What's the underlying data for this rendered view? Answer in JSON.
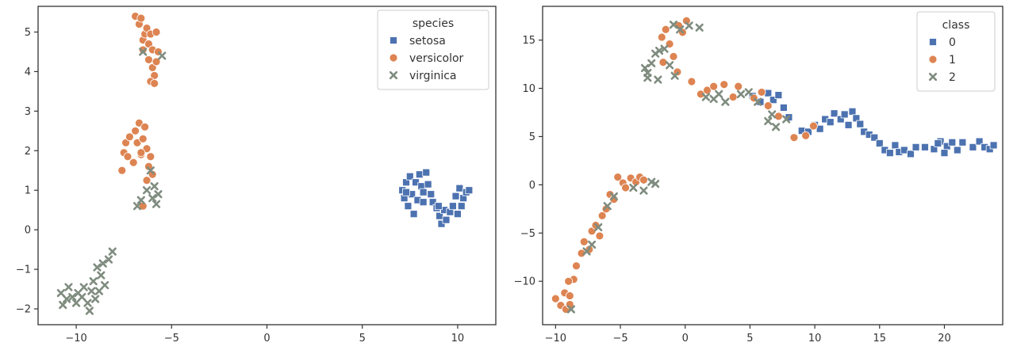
{
  "colors": {
    "setosa": "#4c72b0",
    "versicolor": "#dd8452",
    "virginica": "#7f8c7f",
    "axis": "#333333"
  },
  "chart_data": [
    {
      "type": "scatter",
      "xlim": [
        -12,
        12
      ],
      "ylim": [
        -2.4,
        5.65
      ],
      "xticks": [
        -10,
        -5,
        0,
        5,
        10
      ],
      "yticks": [
        -2,
        -1,
        0,
        1,
        2,
        3,
        4,
        5
      ],
      "grid": false,
      "legend": {
        "title": "species",
        "placement": "top-right"
      },
      "series": [
        {
          "name": "setosa",
          "marker": "square",
          "color": "#4c72b0",
          "points": [
            [
              7.1,
              1.0
            ],
            [
              7.2,
              0.8
            ],
            [
              7.3,
              1.2
            ],
            [
              7.4,
              0.6
            ],
            [
              7.5,
              1.35
            ],
            [
              7.6,
              0.9
            ],
            [
              7.7,
              0.4
            ],
            [
              7.8,
              1.2
            ],
            [
              7.9,
              0.75
            ],
            [
              8.0,
              1.4
            ],
            [
              8.1,
              1.1
            ],
            [
              8.2,
              0.95
            ],
            [
              8.35,
              1.45
            ],
            [
              8.45,
              1.15
            ],
            [
              8.6,
              0.9
            ],
            [
              8.7,
              0.7
            ],
            [
              8.9,
              0.55
            ],
            [
              9.05,
              0.35
            ],
            [
              9.15,
              0.15
            ],
            [
              9.3,
              0.5
            ],
            [
              9.4,
              0.25
            ],
            [
              9.6,
              0.45
            ],
            [
              9.75,
              0.6
            ],
            [
              9.9,
              0.85
            ],
            [
              10.1,
              1.05
            ],
            [
              10.2,
              0.6
            ],
            [
              10.3,
              0.8
            ],
            [
              10.45,
              0.95
            ],
            [
              10.6,
              1.0
            ],
            [
              10.0,
              0.4
            ],
            [
              9.0,
              0.6
            ],
            [
              8.2,
              0.7
            ],
            [
              7.3,
              0.95
            ]
          ]
        },
        {
          "name": "versicolor",
          "marker": "circle",
          "color": "#dd8452",
          "points": [
            [
              -6.9,
              5.4
            ],
            [
              -6.7,
              5.2
            ],
            [
              -6.6,
              5.35
            ],
            [
              -6.5,
              4.8
            ],
            [
              -6.4,
              4.95
            ],
            [
              -6.3,
              5.1
            ],
            [
              -6.2,
              4.7
            ],
            [
              -6.1,
              4.95
            ],
            [
              -6.0,
              4.55
            ],
            [
              -6.2,
              4.3
            ],
            [
              -6.0,
              4.1
            ],
            [
              -5.9,
              3.9
            ],
            [
              -5.8,
              4.25
            ],
            [
              -6.1,
              3.75
            ],
            [
              -5.7,
              4.5
            ],
            [
              -5.8,
              5.0
            ],
            [
              -5.9,
              3.7
            ],
            [
              -6.5,
              4.55
            ],
            [
              -7.6,
              1.5
            ],
            [
              -7.5,
              1.95
            ],
            [
              -7.4,
              2.2
            ],
            [
              -7.3,
              1.85
            ],
            [
              -7.2,
              2.35
            ],
            [
              -7.0,
              1.7
            ],
            [
              -6.9,
              2.5
            ],
            [
              -6.8,
              2.2
            ],
            [
              -6.7,
              2.7
            ],
            [
              -6.6,
              1.9
            ],
            [
              -6.5,
              2.3
            ],
            [
              -6.4,
              2.6
            ],
            [
              -6.3,
              2.05
            ],
            [
              -6.2,
              1.6
            ],
            [
              -6.1,
              1.85
            ],
            [
              -6.3,
              1.25
            ],
            [
              -6.0,
              1.4
            ],
            [
              -6.6,
              1.95
            ],
            [
              -6.5,
              0.6
            ]
          ]
        },
        {
          "name": "virginica",
          "marker": "x",
          "color": "#7f8c7f",
          "points": [
            [
              -6.8,
              0.6
            ],
            [
              -6.6,
              0.75
            ],
            [
              -6.3,
              1.0
            ],
            [
              -6.0,
              0.8
            ],
            [
              -5.9,
              1.1
            ],
            [
              -5.7,
              0.9
            ],
            [
              -5.8,
              0.65
            ],
            [
              -6.1,
              1.5
            ],
            [
              -6.5,
              4.5
            ],
            [
              -5.5,
              4.4
            ],
            [
              -10.8,
              -1.6
            ],
            [
              -10.7,
              -1.9
            ],
            [
              -10.5,
              -1.75
            ],
            [
              -10.4,
              -1.45
            ],
            [
              -10.2,
              -1.7
            ],
            [
              -10.0,
              -1.85
            ],
            [
              -9.9,
              -1.6
            ],
            [
              -9.7,
              -1.7
            ],
            [
              -9.6,
              -1.45
            ],
            [
              -9.4,
              -1.85
            ],
            [
              -9.3,
              -2.05
            ],
            [
              -9.2,
              -1.55
            ],
            [
              -9.1,
              -1.3
            ],
            [
              -9.0,
              -1.75
            ],
            [
              -8.9,
              -0.95
            ],
            [
              -8.8,
              -1.55
            ],
            [
              -8.7,
              -1.15
            ],
            [
              -8.6,
              -0.85
            ],
            [
              -8.5,
              -1.4
            ],
            [
              -8.3,
              -0.75
            ],
            [
              -8.1,
              -0.55
            ]
          ]
        }
      ]
    },
    {
      "type": "scatter",
      "xlim": [
        -11,
        24.5
      ],
      "ylim": [
        -14.5,
        18.5
      ],
      "xticks": [
        -10,
        -5,
        0,
        5,
        10,
        15,
        20,
        25
      ],
      "yticks": [
        -10,
        -5,
        0,
        5,
        10,
        15
      ],
      "grid": false,
      "legend": {
        "title": "class",
        "placement": "top-right"
      },
      "series": [
        {
          "name": "0",
          "marker": "square",
          "color": "#4c72b0",
          "points": [
            [
              5.2,
              9.2
            ],
            [
              5.8,
              8.6
            ],
            [
              6.4,
              9.5
            ],
            [
              6.8,
              8.8
            ],
            [
              7.2,
              9.3
            ],
            [
              7.6,
              8.0
            ],
            [
              8.0,
              7.0
            ],
            [
              9.0,
              5.6
            ],
            [
              9.5,
              5.5
            ],
            [
              10.0,
              6.2
            ],
            [
              10.4,
              5.8
            ],
            [
              10.8,
              6.8
            ],
            [
              11.2,
              6.5
            ],
            [
              11.5,
              7.4
            ],
            [
              12.0,
              6.8
            ],
            [
              12.3,
              7.3
            ],
            [
              12.6,
              6.2
            ],
            [
              12.9,
              7.6
            ],
            [
              13.2,
              6.9
            ],
            [
              13.5,
              6.3
            ],
            [
              13.8,
              5.5
            ],
            [
              14.2,
              5.2
            ],
            [
              14.6,
              4.9
            ],
            [
              15.0,
              4.3
            ],
            [
              15.4,
              3.6
            ],
            [
              15.8,
              3.3
            ],
            [
              16.2,
              4.1
            ],
            [
              16.5,
              3.4
            ],
            [
              16.9,
              3.6
            ],
            [
              17.4,
              3.2
            ],
            [
              17.8,
              3.9
            ],
            [
              18.5,
              3.9
            ],
            [
              19.2,
              3.7
            ],
            [
              19.7,
              4.5
            ],
            [
              20.2,
              4.0
            ],
            [
              20.6,
              4.4
            ],
            [
              21.0,
              3.6
            ],
            [
              21.4,
              4.4
            ],
            [
              22.2,
              3.9
            ],
            [
              22.7,
              4.5
            ],
            [
              23.1,
              3.9
            ],
            [
              23.5,
              3.7
            ],
            [
              23.8,
              4.1
            ],
            [
              20.0,
              3.3
            ],
            [
              19.5,
              4.3
            ]
          ]
        },
        {
          "name": "1",
          "marker": "circle",
          "color": "#dd8452",
          "points": [
            [
              -10.0,
              -11.8
            ],
            [
              -9.6,
              -12.5
            ],
            [
              -9.2,
              -12.9
            ],
            [
              -8.9,
              -12.4
            ],
            [
              -9.3,
              -11.2
            ],
            [
              -8.9,
              -11.5
            ],
            [
              -8.6,
              -9.8
            ],
            [
              -9.0,
              -10.0
            ],
            [
              -8.4,
              -8.4
            ],
            [
              -8.0,
              -7.1
            ],
            [
              -7.8,
              -5.9
            ],
            [
              -7.4,
              -6.7
            ],
            [
              -7.2,
              -4.8
            ],
            [
              -6.9,
              -4.2
            ],
            [
              -6.6,
              -5.3
            ],
            [
              -6.4,
              -3.2
            ],
            [
              -6.1,
              -2.5
            ],
            [
              -5.8,
              -1.0
            ],
            [
              -5.5,
              -1.5
            ],
            [
              -5.2,
              0.8
            ],
            [
              -4.8,
              0.2
            ],
            [
              -4.2,
              0.7
            ],
            [
              -3.8,
              0.3
            ],
            [
              -3.5,
              0.8
            ],
            [
              -3.2,
              0.5
            ],
            [
              -4.6,
              -0.3
            ],
            [
              -1.8,
              15.3
            ],
            [
              -1.5,
              16.1
            ],
            [
              -1.2,
              14.6
            ],
            [
              -0.9,
              13.3
            ],
            [
              -0.6,
              11.7
            ],
            [
              -0.2,
              15.8
            ],
            [
              0.1,
              17.0
            ],
            [
              -0.5,
              16.5
            ],
            [
              -1.7,
              12.7
            ],
            [
              0.5,
              10.7
            ],
            [
              1.2,
              9.4
            ],
            [
              1.7,
              9.8
            ],
            [
              2.2,
              10.2
            ],
            [
              3.0,
              10.4
            ],
            [
              3.7,
              9.1
            ],
            [
              4.1,
              10.2
            ],
            [
              5.3,
              9.0
            ],
            [
              5.9,
              9.6
            ],
            [
              6.4,
              8.2
            ],
            [
              7.2,
              7.1
            ],
            [
              8.4,
              4.9
            ],
            [
              9.3,
              5.1
            ],
            [
              9.9,
              6.1
            ]
          ]
        },
        {
          "name": "2",
          "marker": "x",
          "color": "#7f8c7f",
          "points": [
            [
              -8.8,
              -12.9
            ],
            [
              -7.6,
              -6.9
            ],
            [
              -7.2,
              -6.2
            ],
            [
              -6.7,
              -4.4
            ],
            [
              -6.0,
              -2.2
            ],
            [
              -5.5,
              -1.2
            ],
            [
              -4.0,
              -0.3
            ],
            [
              -3.2,
              -0.6
            ],
            [
              -2.6,
              0.3
            ],
            [
              -2.3,
              0.1
            ],
            [
              -3.1,
              12.1
            ],
            [
              -2.9,
              11.6
            ],
            [
              -2.6,
              12.6
            ],
            [
              -2.3,
              13.6
            ],
            [
              -2.0,
              13.9
            ],
            [
              -1.6,
              14.1
            ],
            [
              -1.2,
              12.4
            ],
            [
              -0.9,
              16.6
            ],
            [
              -0.4,
              16.1
            ],
            [
              0.3,
              16.5
            ],
            [
              1.1,
              16.3
            ],
            [
              -2.1,
              10.9
            ],
            [
              -2.9,
              11.1
            ],
            [
              -0.8,
              11.3
            ],
            [
              1.6,
              9.1
            ],
            [
              2.6,
              9.4
            ],
            [
              3.1,
              8.6
            ],
            [
              4.3,
              9.4
            ],
            [
              4.9,
              9.6
            ],
            [
              6.4,
              6.6
            ],
            [
              6.7,
              7.3
            ],
            [
              7.0,
              6.0
            ],
            [
              7.8,
              6.8
            ],
            [
              5.6,
              8.6
            ],
            [
              2.2,
              8.9
            ]
          ]
        }
      ]
    }
  ]
}
